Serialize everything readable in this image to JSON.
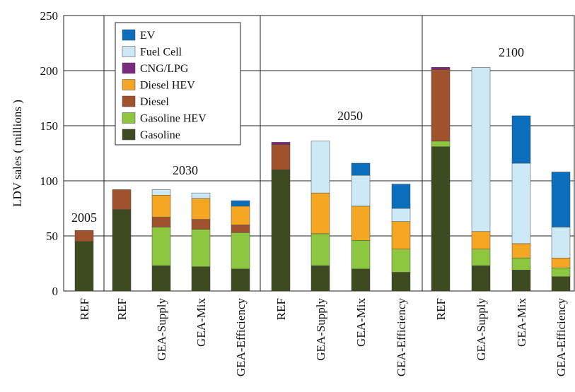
{
  "chart_data": {
    "type": "stacked_bar",
    "ylabel": "LDV sales ( millions )",
    "categories": [
      "REF",
      "REF",
      "GEA-Supply",
      "GEA-Mix",
      "GEA-Efficiency",
      "REF",
      "GEA-Supply",
      "GEA-Mix",
      "GEA-Efficiency",
      "REF",
      "GEA-Supply",
      "GEA-Mix",
      "GEA-Efficiency"
    ],
    "group_labels": [
      "2005",
      "2030",
      "2050",
      "2100"
    ],
    "series": [
      {
        "name": "Gasoline",
        "color": "#3e4a1f",
        "values": [
          45,
          74,
          23,
          22,
          20,
          110,
          23,
          20,
          17,
          131,
          23,
          19,
          13
        ]
      },
      {
        "name": "Gasoline HEV",
        "color": "#8dc63f",
        "values": [
          0,
          0,
          35,
          34,
          33,
          0,
          29,
          26,
          21,
          5,
          15,
          11,
          8
        ]
      },
      {
        "name": "Diesel",
        "color": "#a0522d",
        "values": [
          10,
          18,
          9,
          9,
          7,
          23,
          0,
          0,
          0,
          65,
          0,
          0,
          0
        ]
      },
      {
        "name": "Diesel HEV",
        "color": "#f5a623",
        "values": [
          0,
          0,
          20,
          19,
          17,
          0,
          37,
          31,
          25,
          0,
          16,
          13,
          9
        ]
      },
      {
        "name": "CNG/LPG",
        "color": "#7b2a7f",
        "values": [
          0,
          0,
          0,
          0,
          0,
          2,
          0,
          0,
          0,
          2,
          0,
          0,
          0
        ]
      },
      {
        "name": "Fuel Cell",
        "color": "#cce9f5",
        "values": [
          0,
          0,
          5,
          5,
          0,
          0,
          47,
          28,
          12,
          0,
          149,
          73,
          28
        ]
      },
      {
        "name": "EV",
        "color": "#0a6ebd",
        "values": [
          0,
          0,
          0,
          0,
          5,
          0,
          0,
          11,
          22,
          0,
          0,
          43,
          50
        ]
      }
    ],
    "ylim": [
      0,
      250
    ],
    "yticks": [
      0,
      50,
      100,
      150,
      200,
      250
    ]
  }
}
